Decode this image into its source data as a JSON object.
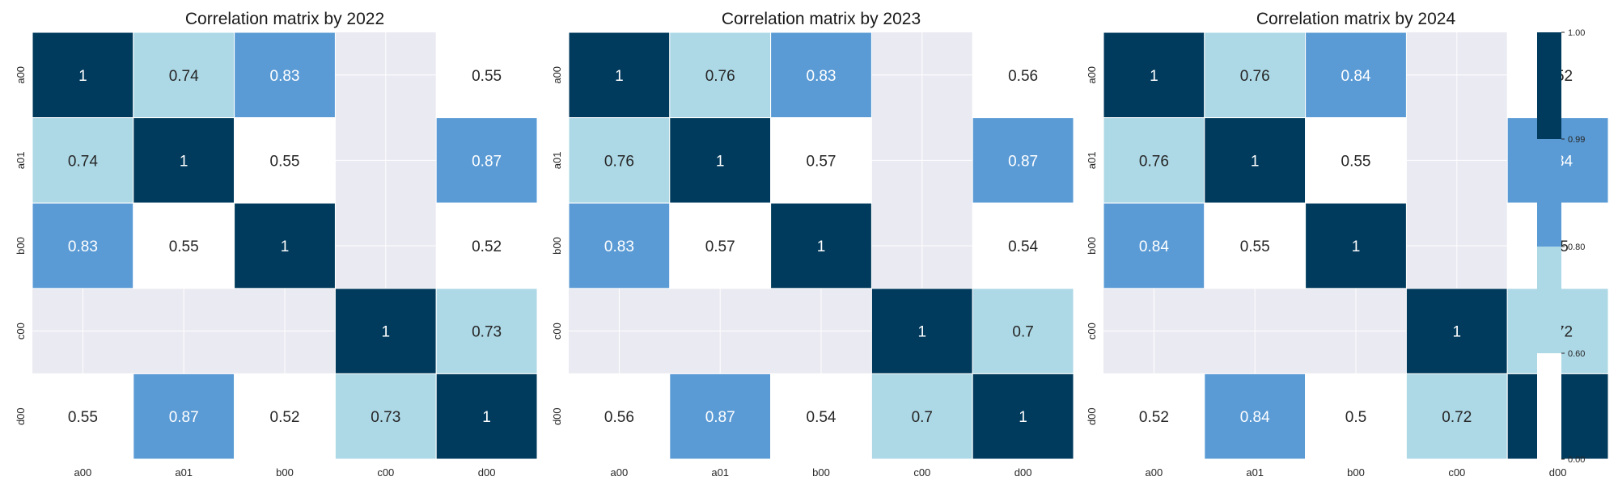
{
  "chart_data": {
    "type": "heatmap",
    "variables": [
      "a00",
      "a01",
      "b00",
      "c00",
      "d00"
    ],
    "missing_color": "#eaeaf2",
    "colorbar": {
      "ticks": [
        "1.00",
        "0.99",
        "0.80",
        "0.60",
        "0.00"
      ],
      "bins": [
        {
          "min": 0.0,
          "max": 0.6,
          "color": "#ffffff"
        },
        {
          "min": 0.6,
          "max": 0.8,
          "color": "#add8e6"
        },
        {
          "min": 0.8,
          "max": 0.99,
          "color": "#5b9bd5"
        },
        {
          "min": 0.99,
          "max": 1.0,
          "color": "#003a5c"
        }
      ]
    },
    "panels": [
      {
        "title": "Correlation matrix by 2022",
        "matrix": [
          [
            1,
            0.74,
            0.83,
            null,
            0.55
          ],
          [
            0.74,
            1,
            0.55,
            null,
            0.87
          ],
          [
            0.83,
            0.55,
            1,
            null,
            0.52
          ],
          [
            null,
            null,
            null,
            1,
            0.73
          ],
          [
            0.55,
            0.87,
            0.52,
            0.73,
            1
          ]
        ]
      },
      {
        "title": "Correlation matrix by 2023",
        "matrix": [
          [
            1,
            0.76,
            0.83,
            null,
            0.56
          ],
          [
            0.76,
            1,
            0.57,
            null,
            0.87
          ],
          [
            0.83,
            0.57,
            1,
            null,
            0.54
          ],
          [
            null,
            null,
            null,
            1,
            0.7
          ],
          [
            0.56,
            0.87,
            0.54,
            0.7,
            1
          ]
        ]
      },
      {
        "title": "Correlation matrix by 2024",
        "matrix": [
          [
            1,
            0.76,
            0.84,
            null,
            0.52
          ],
          [
            0.76,
            1,
            0.55,
            null,
            0.84
          ],
          [
            0.84,
            0.55,
            1,
            null,
            0.5
          ],
          [
            null,
            null,
            null,
            1,
            0.72
          ],
          [
            0.52,
            0.84,
            0.5,
            0.72,
            1
          ]
        ]
      }
    ]
  }
}
